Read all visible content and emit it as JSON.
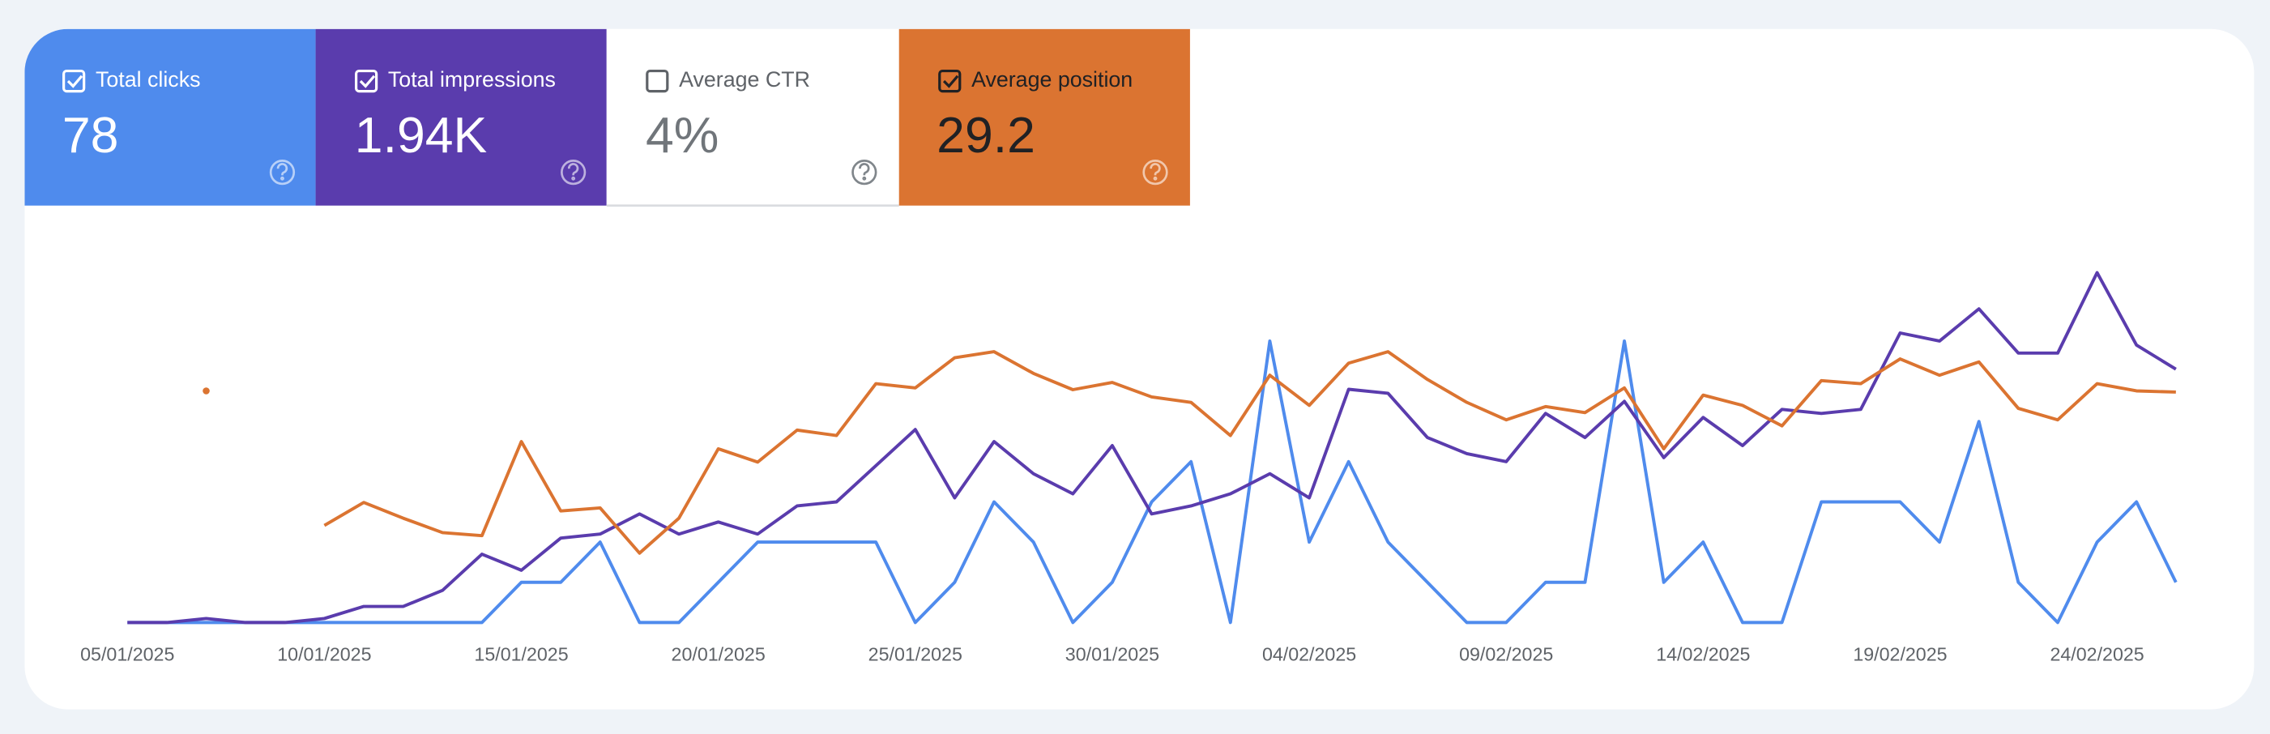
{
  "tiles": {
    "ctr": {
      "label": "Average CTR",
      "value": "4%",
      "checked": false
    }
  },
  "chart_data": {
    "type": "line",
    "x": [
      "05/01/2025",
      "06/01/2025",
      "07/01/2025",
      "08/01/2025",
      "09/01/2025",
      "10/01/2025",
      "11/01/2025",
      "12/01/2025",
      "13/01/2025",
      "14/01/2025",
      "15/01/2025",
      "16/01/2025",
      "17/01/2025",
      "18/01/2025",
      "19/01/2025",
      "20/01/2025",
      "21/01/2025",
      "22/01/2025",
      "23/01/2025",
      "24/01/2025",
      "25/01/2025",
      "26/01/2025",
      "27/01/2025",
      "28/01/2025",
      "29/01/2025",
      "30/01/2025",
      "31/01/2025",
      "01/02/2025",
      "02/02/2025",
      "03/02/2025",
      "04/02/2025",
      "05/02/2025",
      "06/02/2025",
      "07/02/2025",
      "08/02/2025",
      "09/02/2025",
      "10/02/2025",
      "11/02/2025",
      "12/02/2025",
      "13/02/2025",
      "14/02/2025",
      "15/02/2025",
      "16/02/2025",
      "17/02/2025",
      "18/02/2025",
      "19/02/2025",
      "20/02/2025",
      "21/02/2025",
      "22/02/2025",
      "23/02/2025",
      "24/02/2025",
      "25/02/2025",
      "26/02/2025"
    ],
    "series": [
      {
        "name": "Total clicks",
        "summary": "78",
        "checked": true,
        "color": "#4f8bed",
        "ylim": [
          0,
          9
        ],
        "values": [
          0,
          0,
          0,
          0,
          0,
          0,
          0,
          0,
          0,
          0,
          1,
          1,
          2,
          0,
          0,
          1,
          2,
          2,
          2,
          2,
          0,
          1,
          3,
          2,
          0,
          1,
          3,
          4,
          0,
          7,
          2,
          4,
          2,
          1,
          0,
          0,
          1,
          1,
          7,
          1,
          2,
          0,
          0,
          3,
          3,
          3,
          2,
          5,
          1,
          0,
          2,
          3,
          1
        ]
      },
      {
        "name": "Total impressions",
        "summary": "1.94K",
        "checked": true,
        "color": "#5a3cad",
        "ylim": [
          0,
          90
        ],
        "values": [
          0,
          0,
          1,
          0,
          0,
          1,
          4,
          4,
          8,
          17,
          13,
          21,
          22,
          27,
          22,
          25,
          22,
          29,
          30,
          39,
          48,
          31,
          45,
          37,
          32,
          44,
          27,
          29,
          32,
          37,
          31,
          58,
          57,
          46,
          42,
          40,
          52,
          46,
          55,
          41,
          51,
          44,
          53,
          52,
          53,
          72,
          70,
          78,
          67,
          67,
          87,
          69,
          63
        ]
      },
      {
        "name": "Average position",
        "summary": "29.2",
        "checked": true,
        "color": "#db7431",
        "ylim": [
          60,
          0
        ],
        "values": [
          null,
          null,
          21.6,
          null,
          null,
          43.9,
          40.1,
          42.7,
          45.1,
          45.6,
          30,
          41.5,
          41,
          48.5,
          42.7,
          31.2,
          33.4,
          28.1,
          29,
          20.4,
          21.1,
          16.1,
          15.1,
          18.7,
          21.4,
          20.2,
          22.6,
          23.5,
          29,
          19,
          24,
          17,
          15.1,
          19.7,
          23.5,
          26.4,
          24.2,
          25.2,
          21.1,
          31.2,
          22.3,
          24,
          27.4,
          19.9,
          20.4,
          16.3,
          19,
          16.8,
          24.5,
          26.4,
          20.4,
          21.6,
          21.8
        ]
      }
    ]
  }
}
